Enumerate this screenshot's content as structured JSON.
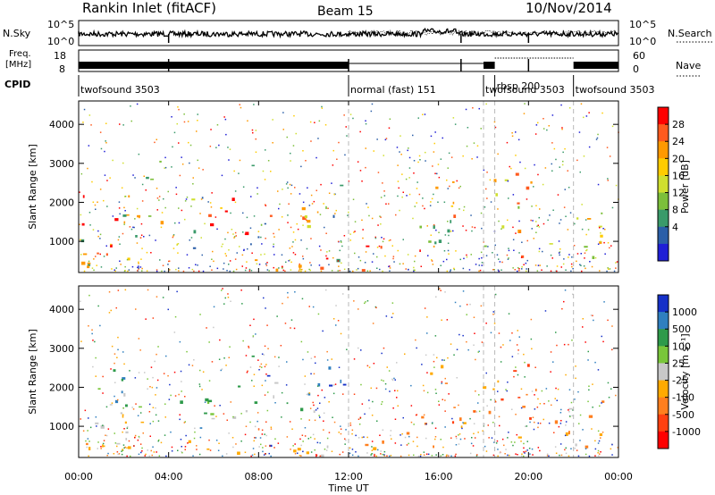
{
  "header": {
    "station": "Rankin Inlet (fitACF)",
    "beam": "Beam 15",
    "date": "10/Nov/2014"
  },
  "top_panels": {
    "nsky_label": "N.Sky",
    "nsky_ticks": [
      "10^5",
      "10^0"
    ],
    "nsearch_label": "N.Search",
    "freq_label_line1": "Freq.",
    "freq_label_line2": "[MHz]",
    "freq_ticks": [
      "18",
      "8"
    ],
    "nave_ticks": [
      "60",
      "0"
    ],
    "nave_label": "Nave",
    "cpid_label": "CPID",
    "cpid_segments": [
      {
        "label": "twofsound 3503",
        "start_hour": 0.0,
        "end_hour": 12.0
      },
      {
        "label": "normal (fast) 151",
        "start_hour": 12.0,
        "end_hour": 18.0
      },
      {
        "label": "twofsound 3503",
        "start_hour": 18.0,
        "end_hour": 18.5
      },
      {
        "label": "rbsp 200",
        "start_hour": 18.5,
        "end_hour": 22.0
      },
      {
        "label": "twofsound 3503",
        "start_hour": 22.0,
        "end_hour": 24.0
      }
    ]
  },
  "chart_data": [
    {
      "type": "heatmap",
      "name": "power",
      "ylabel": "Slant Range [km]",
      "ylim": [
        200,
        4600
      ],
      "yticks": [
        1000,
        2000,
        3000,
        4000
      ],
      "xlim": [
        0,
        24
      ],
      "colorbar": {
        "label": "Power [dB]",
        "ticks": [
          "28",
          "24",
          "20",
          "16",
          "12",
          "8",
          "4"
        ],
        "colors": [
          "#ff0000",
          "#ff5a1e",
          "#ff9900",
          "#ffcc00",
          "#cfdf2f",
          "#7cbf3a",
          "#3a9a6a",
          "#2b5fa8",
          "#1f1fd6"
        ]
      },
      "dashed_hours": [
        12.0,
        18.0,
        18.5,
        22.0
      ]
    },
    {
      "type": "heatmap",
      "name": "velocity",
      "ylabel": "Slant Range [km]",
      "ylim": [
        200,
        4600
      ],
      "yticks": [
        1000,
        2000,
        3000,
        4000
      ],
      "xlim": [
        0,
        24
      ],
      "xlabel": "Time UT",
      "xticks": [
        "00:00",
        "04:00",
        "08:00",
        "12:00",
        "16:00",
        "20:00",
        "00:00"
      ],
      "colorbar": {
        "label": "Velocity [m s⁻¹]",
        "ticks": [
          "1000",
          "500",
          "100",
          "25",
          "-25",
          "-100",
          "-500",
          "-1000"
        ],
        "colors": [
          "#1530c8",
          "#2f7fbf",
          "#2e9a4a",
          "#79c63a",
          "#c8c8c8",
          "#ffaa00",
          "#ff7f1e",
          "#ff4010",
          "#ff0000"
        ]
      },
      "dashed_hours": [
        12.0,
        18.0,
        18.5,
        22.0
      ]
    }
  ]
}
